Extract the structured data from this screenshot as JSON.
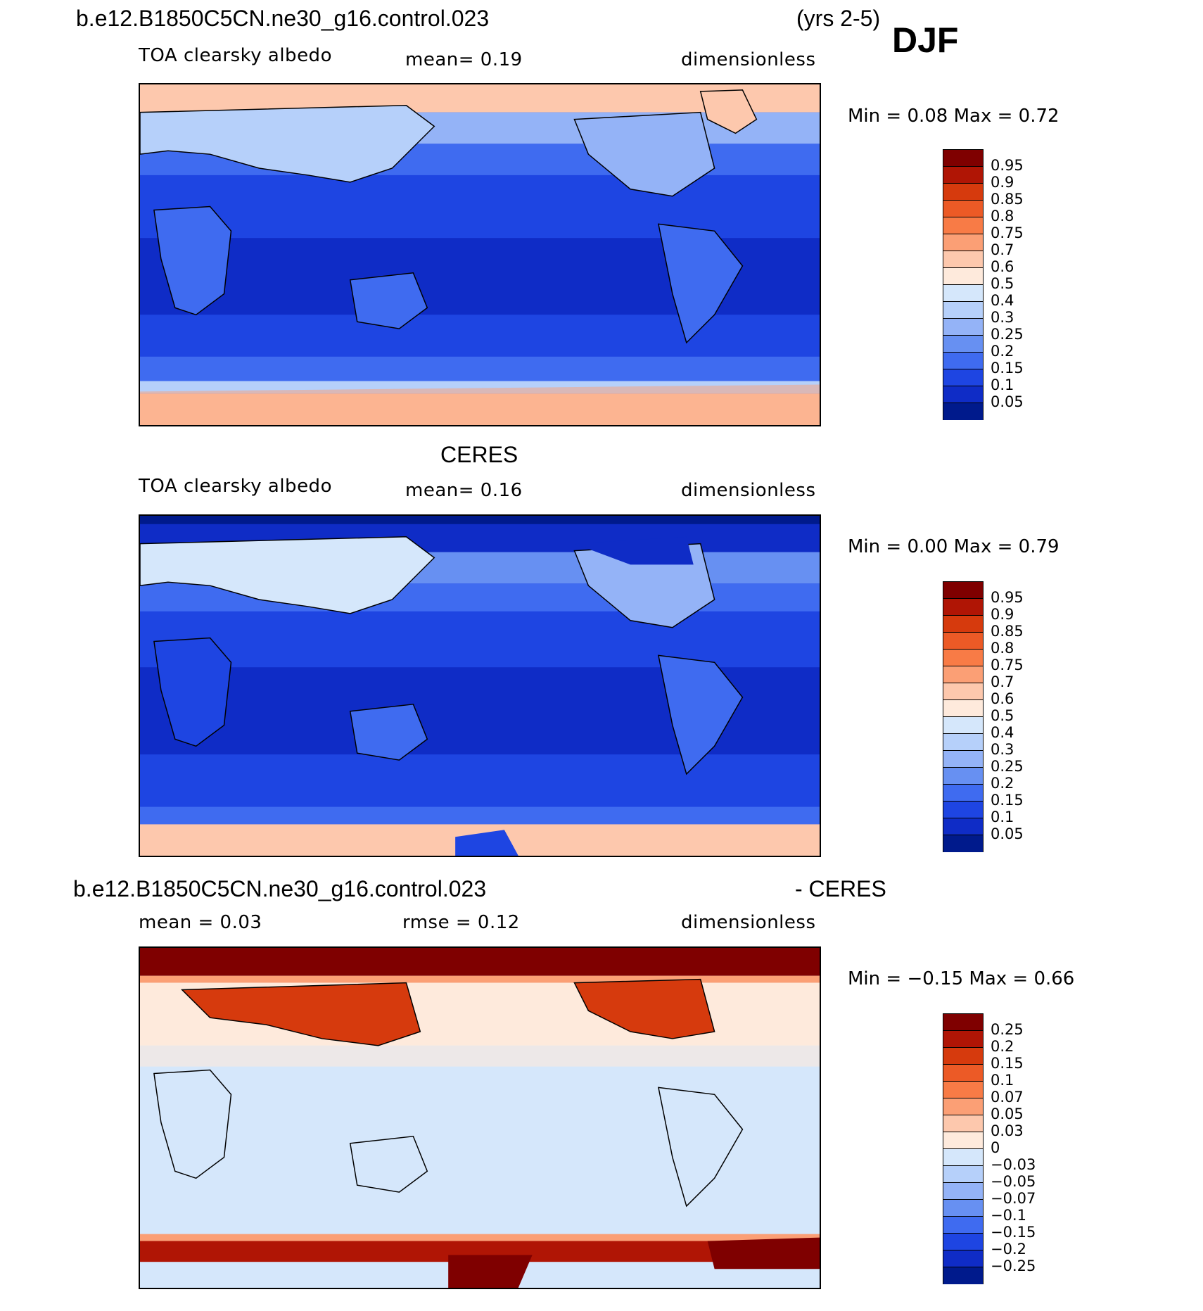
{
  "header": {
    "case_name": "b.e12.B1850C5CN.ne30_g16.control.023",
    "years": "(yrs 2-5)",
    "season": "DJF"
  },
  "panels": [
    {
      "id": "model",
      "title": "",
      "variable": "TOA clearsky albedo",
      "stat1": "mean=    0.19",
      "stat2": "",
      "units": "dimensionless",
      "minmax": "Min =     0.08  Max =     0.72",
      "colorbar_labels": [
        "0.95",
        "0.9",
        "0.85",
        "0.8",
        "0.75",
        "0.7",
        "0.6",
        "0.5",
        "0.4",
        "0.3",
        "0.25",
        "0.2",
        "0.15",
        "0.1",
        "0.05"
      ]
    },
    {
      "id": "obs",
      "title": "CERES",
      "variable": "TOA clearsky albedo",
      "stat1": "mean=    0.16",
      "stat2": "",
      "units": "dimensionless",
      "minmax": "Min =     0.00  Max =     0.79",
      "colorbar_labels": [
        "0.95",
        "0.9",
        "0.85",
        "0.8",
        "0.75",
        "0.7",
        "0.6",
        "0.5",
        "0.4",
        "0.3",
        "0.25",
        "0.2",
        "0.15",
        "0.1",
        "0.05"
      ]
    },
    {
      "id": "diff",
      "title": "b.e12.B1850C5CN.ne30_g16.control.023",
      "title_right": "- CERES",
      "variable": "",
      "stat1": "mean =    0.03",
      "stat2": "rmse =    0.12",
      "units": "dimensionless",
      "minmax": "Min =   −0.15  Max =     0.66",
      "colorbar_labels": [
        "0.25",
        "0.2",
        "0.15",
        "0.1",
        "0.07",
        "0.05",
        "0.03",
        "0",
        "−0.03",
        "−0.05",
        "−0.07",
        "−0.1",
        "−0.15",
        "−0.2",
        "−0.25"
      ]
    }
  ],
  "colors": {
    "abs_scale": [
      "#7f0000",
      "#b01505",
      "#d63a0d",
      "#ec5a26",
      "#f87b46",
      "#fb9f75",
      "#fdc8ad",
      "#feeadc",
      "#d5e7fb",
      "#b6d0fa",
      "#94b3f7",
      "#6790f2",
      "#3f6bf0",
      "#1e45e2",
      "#0f2cc6",
      "#001a8c"
    ],
    "diff_scale": [
      "#7f0000",
      "#b01505",
      "#d63a0d",
      "#ec5a26",
      "#f87b46",
      "#fb9f75",
      "#fdc8ad",
      "#feeadc",
      "#d5e7fb",
      "#b6d0fa",
      "#94b3f7",
      "#6790f2",
      "#3f6bf0",
      "#1e45e2",
      "#0f2cc6",
      "#001a8c"
    ]
  }
}
